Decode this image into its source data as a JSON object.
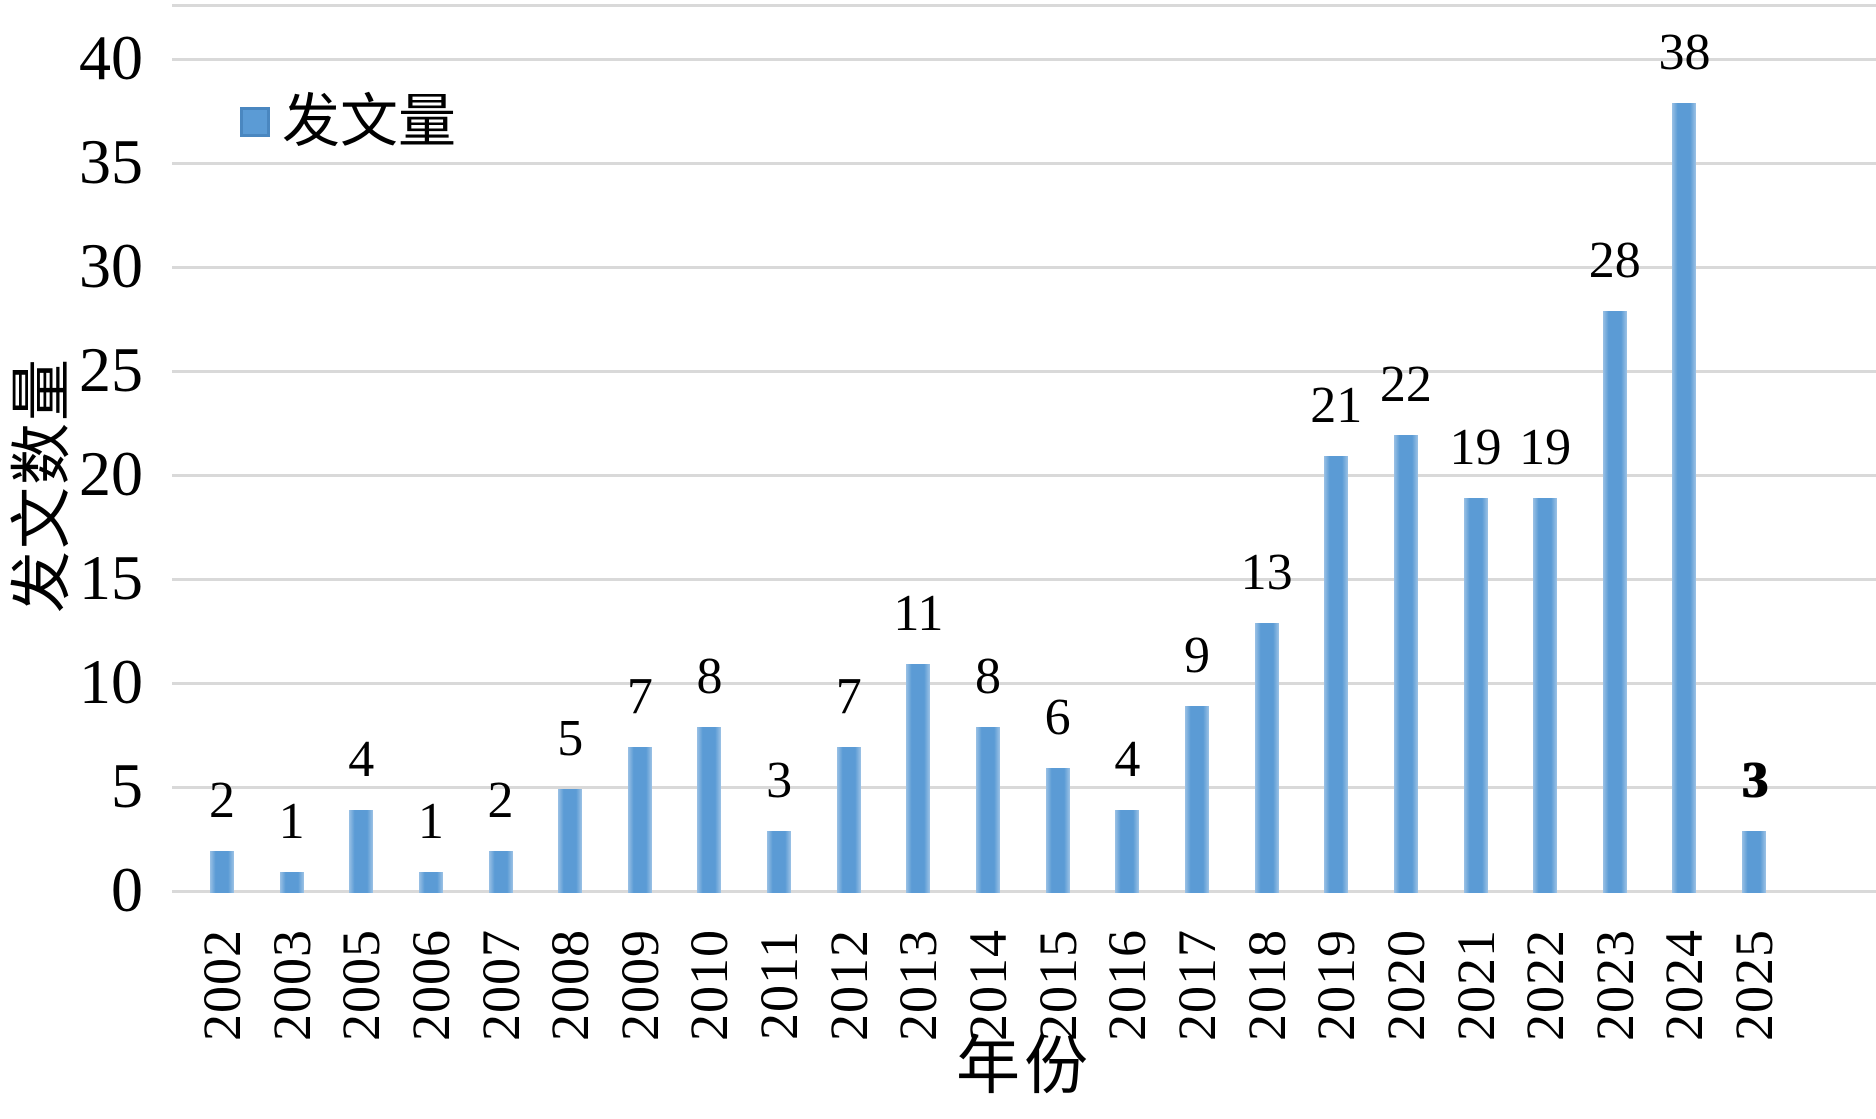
{
  "chart_data": {
    "type": "bar",
    "title": "",
    "xlabel": "年份",
    "ylabel": "发文数量",
    "legend_position": "top-left",
    "grid": true,
    "categories": [
      "2002",
      "2003",
      "2005",
      "2006",
      "2007",
      "2008",
      "2009",
      "2010",
      "2011",
      "2012",
      "2013",
      "2014",
      "2015",
      "2016",
      "2017",
      "2018",
      "2019",
      "2020",
      "2021",
      "2022",
      "2023",
      "2024",
      "2025"
    ],
    "series": [
      {
        "name": "发文量",
        "values": [
          2,
          1,
          4,
          1,
          2,
          5,
          7,
          8,
          3,
          7,
          11,
          8,
          6,
          4,
          9,
          13,
          21,
          22,
          19,
          19,
          28,
          38,
          3
        ]
      }
    ],
    "data_labels_visible": true,
    "label_bold_indices": [
      22
    ],
    "ylim": [
      0,
      40
    ],
    "ytick_interval": 5,
    "yticks": [
      0,
      5,
      10,
      15,
      20,
      25,
      30,
      35,
      40
    ],
    "bar_color": "#5b9bd5",
    "bar_edge_color": "#9cc2e5",
    "gridline_color": "#d9d9d9",
    "text_color": "#000000"
  }
}
